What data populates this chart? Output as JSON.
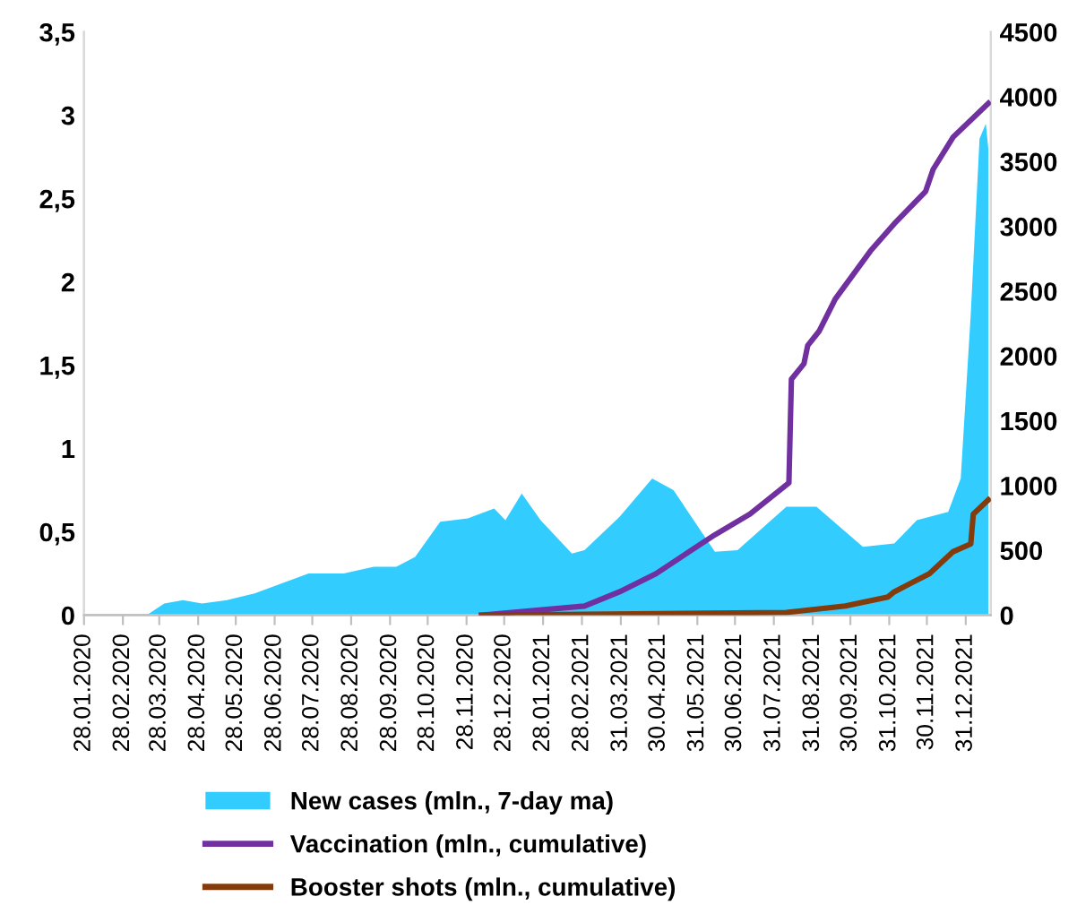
{
  "chart_data": {
    "type": "area",
    "xlim": [
      "2020-01-28",
      "2022-01-20"
    ],
    "xticks": [
      {
        "value": "2020-01-28",
        "label": "28.01.2020"
      },
      {
        "value": "2020-02-28",
        "label": "28.02.2020"
      },
      {
        "value": "2020-03-28",
        "label": "28.03.2020"
      },
      {
        "value": "2020-04-28",
        "label": "28.04.2020"
      },
      {
        "value": "2020-05-28",
        "label": "28.05.2020"
      },
      {
        "value": "2020-06-28",
        "label": "28.06.2020"
      },
      {
        "value": "2020-07-28",
        "label": "28.07.2020"
      },
      {
        "value": "2020-08-28",
        "label": "28.08.2020"
      },
      {
        "value": "2020-09-28",
        "label": "28.09.2020"
      },
      {
        "value": "2020-10-28",
        "label": "28.10.2020"
      },
      {
        "value": "2020-11-28",
        "label": "28.11.2020"
      },
      {
        "value": "2020-12-28",
        "label": "28.12.2020"
      },
      {
        "value": "2021-01-28",
        "label": "28.01.2021"
      },
      {
        "value": "2021-02-28",
        "label": "28.02.2021"
      },
      {
        "value": "2021-03-31",
        "label": "31.03.2021"
      },
      {
        "value": "2021-04-30",
        "label": "30.04.2021"
      },
      {
        "value": "2021-05-31",
        "label": "31.05.2021"
      },
      {
        "value": "2021-06-30",
        "label": "30.06.2021"
      },
      {
        "value": "2021-07-31",
        "label": "31.07.2021"
      },
      {
        "value": "2021-08-31",
        "label": "31.08.2021"
      },
      {
        "value": "2021-09-30",
        "label": "30.09.2021"
      },
      {
        "value": "2021-10-31",
        "label": "31.10.2021"
      },
      {
        "value": "2021-11-30",
        "label": "30.11.2021"
      },
      {
        "value": "2021-12-31",
        "label": "31.12.2021"
      }
    ],
    "ylim": [
      0,
      3.5
    ],
    "yticks": [
      {
        "value": 0,
        "label": "0"
      },
      {
        "value": 0.5,
        "label": "0,5"
      },
      {
        "value": 1,
        "label": "1"
      },
      {
        "value": 1.5,
        "label": "1,5"
      },
      {
        "value": 2,
        "label": "2"
      },
      {
        "value": 2.5,
        "label": "2,5"
      },
      {
        "value": 3,
        "label": "3"
      },
      {
        "value": 3.5,
        "label": "3,5"
      }
    ],
    "y2lim": [
      0,
      4500
    ],
    "y2ticks": [
      0,
      500,
      1000,
      1500,
      2000,
      2500,
      3000,
      3500,
      4000,
      4500
    ],
    "grid": false,
    "legend": "bottom",
    "series": [
      {
        "name": "New cases (mln., 7-day ma)",
        "color": "#33ccff",
        "x": [
          "2020-03-18",
          "2020-04-01",
          "2020-04-16",
          "2020-05-01",
          "2020-05-21",
          "2020-06-12",
          "2020-07-25",
          "2020-08-22",
          "2020-09-15",
          "2020-10-03",
          "2020-10-18",
          "2020-11-07",
          "2020-11-29",
          "2020-12-20",
          "2020-12-29",
          "2021-01-11",
          "2021-01-26",
          "2021-02-20",
          "2021-03-02",
          "2021-03-30",
          "2021-04-25",
          "2021-05-12",
          "2021-06-14",
          "2021-07-02",
          "2021-08-10",
          "2021-09-03",
          "2021-10-10",
          "2021-11-04",
          "2021-11-22",
          "2021-12-17",
          "2021-12-27",
          "2022-01-04",
          "2022-01-11",
          "2022-01-16",
          "2022-01-18"
        ],
        "values": [
          0,
          0.07,
          0.09,
          0.07,
          0.09,
          0.13,
          0.25,
          0.25,
          0.29,
          0.29,
          0.35,
          0.56,
          0.58,
          0.64,
          0.57,
          0.73,
          0.57,
          0.37,
          0.39,
          0.59,
          0.82,
          0.75,
          0.38,
          0.39,
          0.65,
          0.65,
          0.41,
          0.43,
          0.57,
          0.62,
          0.82,
          1.81,
          2.86,
          2.95,
          2.8
        ]
      },
      {
        "name": "Vaccination (mln., cumulative)",
        "type": "line",
        "axis": "y2",
        "color": "#7030a0",
        "x": [
          "2020-12-10",
          "2021-03-02",
          "2021-03-30",
          "2021-04-28",
          "2021-06-14",
          "2021-07-12",
          "2021-08-12",
          "2021-08-14",
          "2021-08-24",
          "2021-08-27",
          "2021-09-05",
          "2021-09-18",
          "2021-10-16",
          "2021-11-04",
          "2021-11-29",
          "2021-12-05",
          "2021-12-21",
          "2022-01-18"
        ],
        "values": [
          0,
          70,
          180,
          320,
          620,
          780,
          1020,
          1820,
          1940,
          2080,
          2190,
          2440,
          2810,
          3020,
          3270,
          3440,
          3690,
          3950
        ]
      },
      {
        "name": "Booster shots (mln., cumulative)",
        "type": "line",
        "axis": "y2",
        "color": "#843c0c",
        "x": [
          "2020-12-10",
          "2021-08-10",
          "2021-09-26",
          "2021-10-30",
          "2021-11-04",
          "2021-12-02",
          "2021-12-21",
          "2022-01-04",
          "2022-01-06",
          "2022-01-18"
        ],
        "values": [
          0,
          20,
          70,
          140,
          180,
          320,
          490,
          550,
          780,
          890
        ]
      }
    ]
  }
}
